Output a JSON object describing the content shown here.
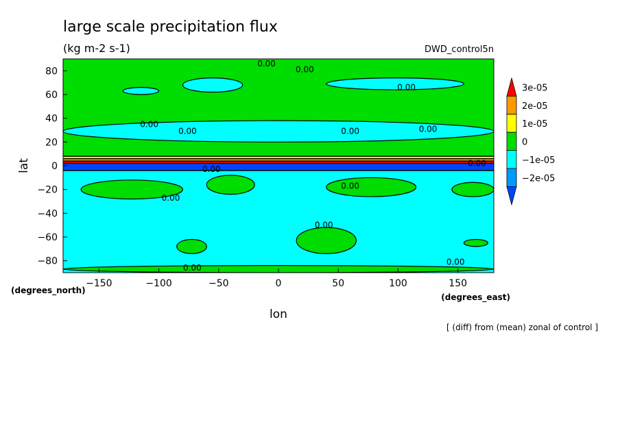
{
  "chart_data": {
    "type": "heatmap",
    "subtype": "filled-contour map",
    "title": "large scale precipitation flux",
    "subtitle": "(kg m-2 s-1)",
    "dataset_label": "DWD_control5n",
    "footnote": "[ (diff) from (mean) zonal of control ]",
    "xlabel": "lon",
    "ylabel": "lat",
    "x_unit_label": "(degrees_east)",
    "y_unit_label": "(degrees_north)",
    "xlim": [
      -180,
      180
    ],
    "ylim": [
      -90,
      90
    ],
    "x_ticks": [
      -150,
      -100,
      -50,
      0,
      50,
      100,
      150
    ],
    "y_ticks": [
      80,
      60,
      40,
      20,
      0,
      -20,
      -40,
      -60,
      -80
    ],
    "colorbar": {
      "labels": [
        "3e-05",
        "2e-05",
        "1e-05",
        "0",
        "−1e-05",
        "−2e-05"
      ],
      "levels": [
        3e-05,
        2e-05,
        1e-05,
        0,
        -1e-05,
        -2e-05
      ],
      "colors": [
        "#ff0000",
        "#ff9900",
        "#ffff00",
        "#00dd00",
        "#00ffff",
        "#0099ff",
        "#0044ff"
      ]
    },
    "bands": [
      {
        "lat_from": 90,
        "lat_to": 8,
        "level": "0 to 1e-05",
        "color": "#00dd00"
      },
      {
        "lat_from": 8,
        "lat_to": 6,
        "level": "1e-05 to 2e-05",
        "color": "#ffff00"
      },
      {
        "lat_from": 6,
        "lat_to": 4,
        "level": "2e-05 to 3e-05",
        "color": "#ff9900"
      },
      {
        "lat_from": 4,
        "lat_to": 2,
        "level": "> 3e-05",
        "color": "#ff0000"
      },
      {
        "lat_from": 2,
        "lat_to": -4,
        "level": "< -2e-05",
        "color": "#0044ff"
      },
      {
        "lat_from": -4,
        "lat_to": -90,
        "level": "-1e-05 to 0",
        "color": "#00ffff"
      }
    ],
    "regions": [
      {
        "lon_from": -130,
        "lon_to": -100,
        "lat_from": 66,
        "lat_to": 60,
        "color": "#00ffff"
      },
      {
        "lon_from": -80,
        "lon_to": -30,
        "lat_from": 74,
        "lat_to": 62,
        "color": "#00ffff"
      },
      {
        "lon_from": 40,
        "lon_to": 155,
        "lat_from": 74,
        "lat_to": 64,
        "color": "#00ffff"
      },
      {
        "lon_from": -180,
        "lon_to": 180,
        "lat_from": 38,
        "lat_to": 20,
        "color": "#00ffff"
      },
      {
        "lon_from": -165,
        "lon_to": -80,
        "lat_from": -12,
        "lat_to": -28,
        "color": "#00dd00"
      },
      {
        "lon_from": -60,
        "lon_to": -20,
        "lat_from": -8,
        "lat_to": -24,
        "color": "#00dd00"
      },
      {
        "lon_from": 40,
        "lon_to": 115,
        "lat_from": -10,
        "lat_to": -26,
        "color": "#00dd00"
      },
      {
        "lon_from": 145,
        "lon_to": 180,
        "lat_from": -14,
        "lat_to": -26,
        "color": "#00dd00"
      },
      {
        "lon_from": 15,
        "lon_to": 65,
        "lat_from": -52,
        "lat_to": -74,
        "color": "#00dd00"
      },
      {
        "lon_from": -85,
        "lon_to": -60,
        "lat_from": -62,
        "lat_to": -74,
        "color": "#00dd00"
      },
      {
        "lon_from": 155,
        "lon_to": 175,
        "lat_from": -62,
        "lat_to": -68,
        "color": "#00dd00"
      },
      {
        "lon_from": -180,
        "lon_to": 180,
        "lat_from": -84,
        "lat_to": -90,
        "color": "#00dd00"
      }
    ],
    "contour_labels": [
      {
        "text": "0.00",
        "lon": -10,
        "lat": 86
      },
      {
        "text": "0.00",
        "lon": 22,
        "lat": 81
      },
      {
        "text": "0.00",
        "lon": 107,
        "lat": 66
      },
      {
        "text": "0.00",
        "lon": -108,
        "lat": 35
      },
      {
        "text": "0.00",
        "lon": -76,
        "lat": 29
      },
      {
        "text": "0.00",
        "lon": 60,
        "lat": 29
      },
      {
        "text": "0.00",
        "lon": 125,
        "lat": 31
      },
      {
        "text": "0.00",
        "lon": -56,
        "lat": -3
      },
      {
        "text": "0.00",
        "lon": 166,
        "lat": 2
      },
      {
        "text": "0.00",
        "lon": 60,
        "lat": -17
      },
      {
        "text": "0.00",
        "lon": -90,
        "lat": -27
      },
      {
        "text": "0.00",
        "lon": 38,
        "lat": -50
      },
      {
        "text": "0.00",
        "lon": -72,
        "lat": -86
      },
      {
        "text": "0.00",
        "lon": 148,
        "lat": -81
      }
    ]
  }
}
